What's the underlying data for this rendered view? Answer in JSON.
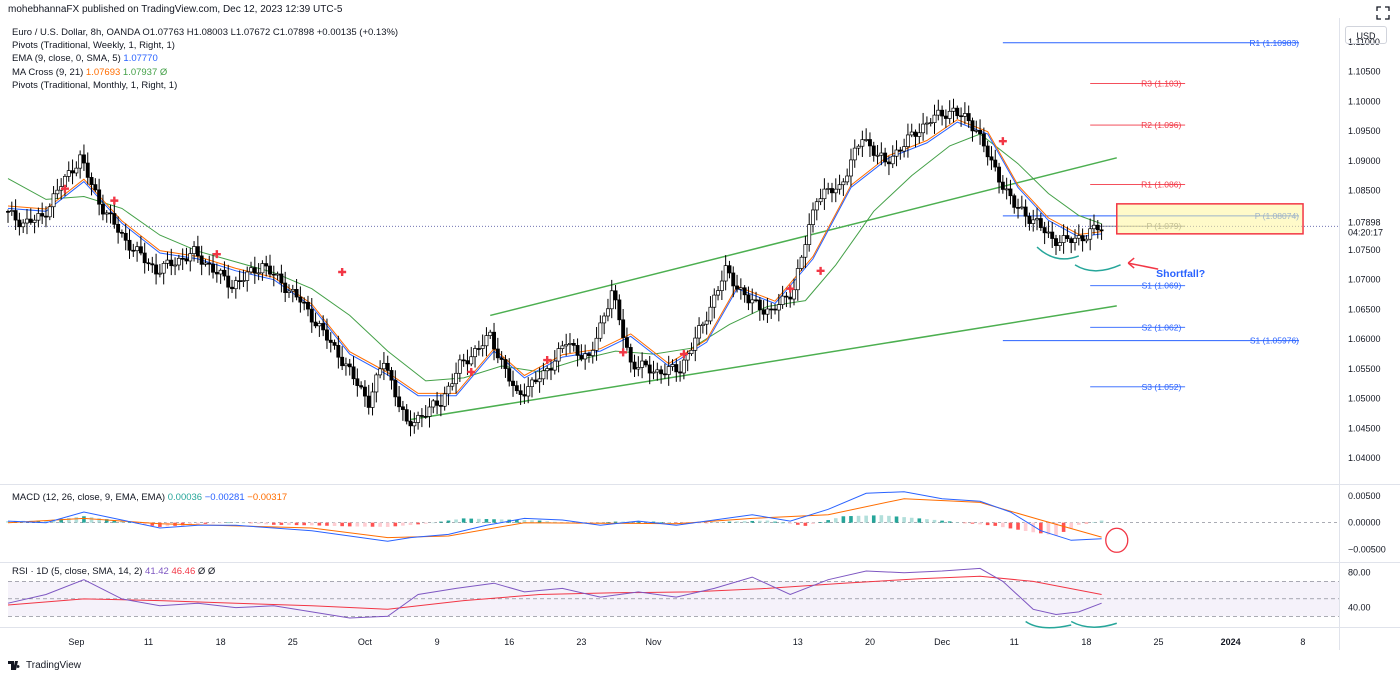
{
  "header": {
    "published": "mohebhannaFX published on TradingView.com, Dec 12, 2023 12:39 UTC-5"
  },
  "legend": {
    "main": {
      "symbol": "Euro / U.S. Dollar, 8h, OANDA",
      "o": "O1.07763",
      "h": "H1.08003",
      "l": "L1.07672",
      "c": "C1.07898",
      "chg": "+0.00135 (+0.13%)"
    },
    "lines": [
      {
        "text": "Pivots (Traditional, Weekly, 1, Right, 1)",
        "val": "",
        "val2": ""
      },
      {
        "text": "EMA (9, close, 0, SMA, 5)",
        "val": "1.07770",
        "val2": ""
      },
      {
        "text": "MA Cross (9, 21)",
        "val": "1.07693",
        "val2": "1.07937  Ø"
      },
      {
        "text": "Pivots (Traditional, Monthly, 1, Right, 1)",
        "val": "",
        "val2": ""
      }
    ]
  },
  "currency_button": "USD",
  "macd_legend": {
    "text": "MACD (12, 26, close, 9, EMA, EMA)",
    "v1": "0.00036",
    "v2": "−0.00281",
    "v3": "−0.00317"
  },
  "rsi_legend": {
    "text": "RSI · 1D (5, close, SMA, 14, 2)",
    "v1": "41.42",
    "v2": "46.46",
    "v3": "Ø  Ø"
  },
  "footer": {
    "brand": "TradingView"
  },
  "colors": {
    "up": "#ffffff",
    "down": "#000000",
    "ema": "#2962ff",
    "ma_fast": "#ff6d00",
    "ma_slow": "#43a047",
    "channel": "#4caf50",
    "red": "#f23645",
    "blue": "#2962ff",
    "rsi": "#7e57c2",
    "teal": "#26a69a",
    "price_bg": "#fff59d"
  },
  "chart_data": {
    "type": "candlestick",
    "symbol": "EUR/USD",
    "interval": "8h",
    "y_axis": {
      "min": 1.036,
      "max": 1.114,
      "ticks": [
        "1.11000",
        "1.10500",
        "1.10000",
        "1.09500",
        "1.09000",
        "1.08500",
        "1.08000",
        "1.07500",
        "1.07000",
        "1.06500",
        "1.06000",
        "1.05500",
        "1.05000",
        "1.04500",
        "1.04000"
      ]
    },
    "x_axis_labels": [
      "Sep",
      "11",
      "18",
      "25",
      "Oct",
      "9",
      "16",
      "23",
      "Nov",
      "13",
      "20",
      "Dec",
      "11",
      "18",
      "25",
      "2024",
      "8"
    ],
    "current_price": {
      "label": "1.07898",
      "countdown": "04:20:17"
    },
    "price_path": [
      [
        0,
        1.0815
      ],
      [
        5,
        1.0795
      ],
      [
        10,
        1.0805
      ],
      [
        15,
        1.086
      ],
      [
        20,
        1.0905
      ],
      [
        25,
        1.083
      ],
      [
        32,
        1.0765
      ],
      [
        40,
        1.0715
      ],
      [
        50,
        1.0745
      ],
      [
        60,
        1.069
      ],
      [
        68,
        1.0725
      ],
      [
        78,
        1.0665
      ],
      [
        88,
        1.0575
      ],
      [
        96,
        1.0495
      ],
      [
        100,
        1.0565
      ],
      [
        106,
        1.0455
      ],
      [
        115,
        1.0495
      ],
      [
        120,
        1.0555
      ],
      [
        128,
        1.0605
      ],
      [
        135,
        1.0505
      ],
      [
        142,
        1.054
      ],
      [
        148,
        1.0595
      ],
      [
        154,
        1.0565
      ],
      [
        160,
        1.068
      ],
      [
        165,
        1.056
      ],
      [
        172,
        1.0545
      ],
      [
        178,
        1.055
      ],
      [
        184,
        1.0625
      ],
      [
        190,
        1.0715
      ],
      [
        196,
        1.0665
      ],
      [
        202,
        1.0645
      ],
      [
        208,
        1.0685
      ],
      [
        214,
        1.084
      ],
      [
        220,
        1.0855
      ],
      [
        226,
        1.094
      ],
      [
        232,
        1.0895
      ],
      [
        238,
        1.0935
      ],
      [
        244,
        1.097
      ],
      [
        250,
        1.0985
      ],
      [
        256,
        1.0955
      ],
      [
        260,
        1.0895
      ],
      [
        266,
        1.0825
      ],
      [
        272,
        1.0795
      ],
      [
        276,
        1.0768
      ],
      [
        280,
        1.0765
      ],
      [
        284,
        1.0772
      ],
      [
        288,
        1.0787
      ]
    ],
    "ema_path": [
      [
        0,
        1.082
      ],
      [
        10,
        1.0815
      ],
      [
        20,
        1.0865
      ],
      [
        30,
        1.0795
      ],
      [
        40,
        1.0745
      ],
      [
        50,
        1.0735
      ],
      [
        60,
        1.0715
      ],
      [
        70,
        1.07
      ],
      [
        80,
        1.0655
      ],
      [
        90,
        1.0575
      ],
      [
        100,
        1.054
      ],
      [
        108,
        1.0505
      ],
      [
        118,
        1.0505
      ],
      [
        128,
        1.058
      ],
      [
        136,
        1.0535
      ],
      [
        146,
        1.057
      ],
      [
        156,
        1.058
      ],
      [
        164,
        1.0605
      ],
      [
        174,
        1.0555
      ],
      [
        184,
        1.0595
      ],
      [
        192,
        1.0685
      ],
      [
        202,
        1.066
      ],
      [
        212,
        1.0735
      ],
      [
        222,
        1.0855
      ],
      [
        232,
        1.0905
      ],
      [
        242,
        1.093
      ],
      [
        250,
        1.0965
      ],
      [
        258,
        1.0945
      ],
      [
        266,
        1.0855
      ],
      [
        274,
        1.08
      ],
      [
        282,
        1.0772
      ],
      [
        288,
        1.0777
      ]
    ],
    "ma_slow_path": [
      [
        0,
        1.087
      ],
      [
        10,
        1.0835
      ],
      [
        20,
        1.084
      ],
      [
        30,
        1.082
      ],
      [
        40,
        1.0775
      ],
      [
        50,
        1.0748
      ],
      [
        60,
        1.073
      ],
      [
        70,
        1.0712
      ],
      [
        80,
        1.0685
      ],
      [
        90,
        1.064
      ],
      [
        100,
        1.058
      ],
      [
        110,
        1.053
      ],
      [
        120,
        1.0535
      ],
      [
        130,
        1.0555
      ],
      [
        140,
        1.0545
      ],
      [
        150,
        1.0565
      ],
      [
        160,
        1.058
      ],
      [
        170,
        1.0575
      ],
      [
        180,
        1.0585
      ],
      [
        190,
        1.0625
      ],
      [
        200,
        1.0655
      ],
      [
        210,
        1.0665
      ],
      [
        218,
        1.0725
      ],
      [
        228,
        1.0815
      ],
      [
        238,
        1.0875
      ],
      [
        248,
        1.0925
      ],
      [
        256,
        1.0945
      ],
      [
        266,
        1.0895
      ],
      [
        274,
        1.0845
      ],
      [
        282,
        1.0808
      ],
      [
        288,
        1.0794
      ]
    ],
    "buy_signals": [
      [
        15,
        1.0853
      ],
      [
        28,
        1.0833
      ],
      [
        55,
        1.0743
      ],
      [
        88,
        1.0713
      ],
      [
        122,
        1.0545
      ],
      [
        142,
        1.0565
      ],
      [
        162,
        1.0578
      ],
      [
        178,
        1.0575
      ],
      [
        206,
        1.0685
      ],
      [
        214,
        1.0715
      ],
      [
        262,
        1.0933
      ]
    ],
    "channel_upper": [
      [
        127,
        1.064
      ],
      [
        292,
        1.0905
      ]
    ],
    "channel_lower": [
      [
        106,
        1.0465
      ],
      [
        292,
        1.0656
      ]
    ],
    "pivots_weekly": [
      {
        "label": "R3 (1.103)",
        "value": 1.103
      },
      {
        "label": "R2 (1.096)",
        "value": 1.096
      },
      {
        "label": "R1 (1.086)",
        "value": 1.086
      },
      {
        "label": "P (1.079)",
        "value": 1.079
      },
      {
        "label": "S1 (1.069)",
        "value": 1.069
      },
      {
        "label": "S2 (1.062)",
        "value": 1.062
      },
      {
        "label": "S3 (1.052)",
        "value": 1.052
      }
    ],
    "pivots_monthly": [
      {
        "label": "R1 (1.10983)",
        "value": 1.10983
      },
      {
        "label": "P (1.08074)",
        "value": 1.08074
      },
      {
        "label": "S1 (1.05976)",
        "value": 1.05976
      }
    ],
    "annotation": {
      "text": "Shortfall?"
    },
    "macd": {
      "y_ticks": [
        "0.00500",
        "0.00000",
        "−0.00500"
      ],
      "range": [
        -0.007,
        0.0065
      ],
      "macd_line": [
        [
          0,
          0.0003
        ],
        [
          10,
          0.0
        ],
        [
          20,
          0.002
        ],
        [
          30,
          0.0005
        ],
        [
          40,
          -0.001
        ],
        [
          50,
          -0.0005
        ],
        [
          60,
          -0.0005
        ],
        [
          70,
          -0.001
        ],
        [
          80,
          -0.0015
        ],
        [
          90,
          -0.0025
        ],
        [
          100,
          -0.0035
        ],
        [
          106,
          -0.0028
        ],
        [
          116,
          -0.0022
        ],
        [
          126,
          -0.0005
        ],
        [
          136,
          0.0008
        ],
        [
          146,
          0.0005
        ],
        [
          156,
          -0.0005
        ],
        [
          166,
          0.0003
        ],
        [
          176,
          -0.0005
        ],
        [
          186,
          0.0005
        ],
        [
          196,
          0.0015
        ],
        [
          206,
          0.0003
        ],
        [
          216,
          0.0025
        ],
        [
          226,
          0.0055
        ],
        [
          236,
          0.0058
        ],
        [
          246,
          0.0045
        ],
        [
          256,
          0.004
        ],
        [
          264,
          0.002
        ],
        [
          272,
          -0.0015
        ],
        [
          280,
          -0.0033
        ],
        [
          288,
          -0.003
        ]
      ],
      "signal_line": [
        [
          0,
          0.0
        ],
        [
          20,
          0.0008
        ],
        [
          40,
          -0.0002
        ],
        [
          60,
          -0.0006
        ],
        [
          80,
          -0.001
        ],
        [
          100,
          -0.0028
        ],
        [
          116,
          -0.0025
        ],
        [
          136,
          0.0
        ],
        [
          156,
          -0.0001
        ],
        [
          176,
          -0.0002
        ],
        [
          196,
          0.0008
        ],
        [
          216,
          0.0015
        ],
        [
          236,
          0.0045
        ],
        [
          256,
          0.0038
        ],
        [
          272,
          0.0005
        ],
        [
          288,
          -0.0027
        ]
      ],
      "histogram": [
        [
          0,
          0.0003
        ],
        [
          10,
          0.0004
        ],
        [
          20,
          0.0012
        ],
        [
          30,
          0.0003
        ],
        [
          40,
          -0.0008
        ],
        [
          50,
          -0.0003
        ],
        [
          60,
          0.0001
        ],
        [
          70,
          -0.0004
        ],
        [
          80,
          -0.0005
        ],
        [
          90,
          -0.0007
        ],
        [
          100,
          -0.0008
        ],
        [
          110,
          -0.0002
        ],
        [
          120,
          0.0008
        ],
        [
          130,
          0.0006
        ],
        [
          140,
          0.0004
        ],
        [
          150,
          -0.0002
        ],
        [
          160,
          0.0002
        ],
        [
          170,
          0.0002
        ],
        [
          180,
          -0.0002
        ],
        [
          190,
          0.0002
        ],
        [
          200,
          0.0004
        ],
        [
          210,
          -0.0006
        ],
        [
          220,
          0.0012
        ],
        [
          230,
          0.0014
        ],
        [
          240,
          0.0008
        ],
        [
          250,
          0.0001
        ],
        [
          260,
          -0.0006
        ],
        [
          270,
          -0.0018
        ],
        [
          276,
          -0.0024
        ],
        [
          282,
          -0.0004
        ],
        [
          288,
          0.0004
        ]
      ]
    },
    "rsi": {
      "y_ticks": [
        "80.00",
        "40.00"
      ],
      "range": [
        20,
        90
      ],
      "bands": [
        70,
        30
      ],
      "rsi_line": [
        [
          0,
          45
        ],
        [
          10,
          55
        ],
        [
          20,
          72
        ],
        [
          30,
          50
        ],
        [
          40,
          42
        ],
        [
          50,
          45
        ],
        [
          60,
          40
        ],
        [
          70,
          42
        ],
        [
          80,
          35
        ],
        [
          90,
          28
        ],
        [
          100,
          30
        ],
        [
          108,
          55
        ],
        [
          118,
          62
        ],
        [
          128,
          68
        ],
        [
          136,
          58
        ],
        [
          146,
          62
        ],
        [
          156,
          52
        ],
        [
          166,
          58
        ],
        [
          176,
          52
        ],
        [
          186,
          62
        ],
        [
          196,
          75
        ],
        [
          206,
          55
        ],
        [
          216,
          72
        ],
        [
          226,
          82
        ],
        [
          236,
          80
        ],
        [
          246,
          82
        ],
        [
          256,
          85
        ],
        [
          262,
          70
        ],
        [
          270,
          38
        ],
        [
          276,
          32
        ],
        [
          282,
          35
        ],
        [
          288,
          45
        ]
      ],
      "rsi_ma": [
        [
          0,
          43
        ],
        [
          20,
          50
        ],
        [
          40,
          48
        ],
        [
          60,
          45
        ],
        [
          80,
          42
        ],
        [
          100,
          38
        ],
        [
          120,
          48
        ],
        [
          140,
          55
        ],
        [
          160,
          57
        ],
        [
          180,
          58
        ],
        [
          200,
          62
        ],
        [
          220,
          68
        ],
        [
          240,
          73
        ],
        [
          256,
          76
        ],
        [
          270,
          70
        ],
        [
          288,
          55
        ]
      ]
    }
  }
}
